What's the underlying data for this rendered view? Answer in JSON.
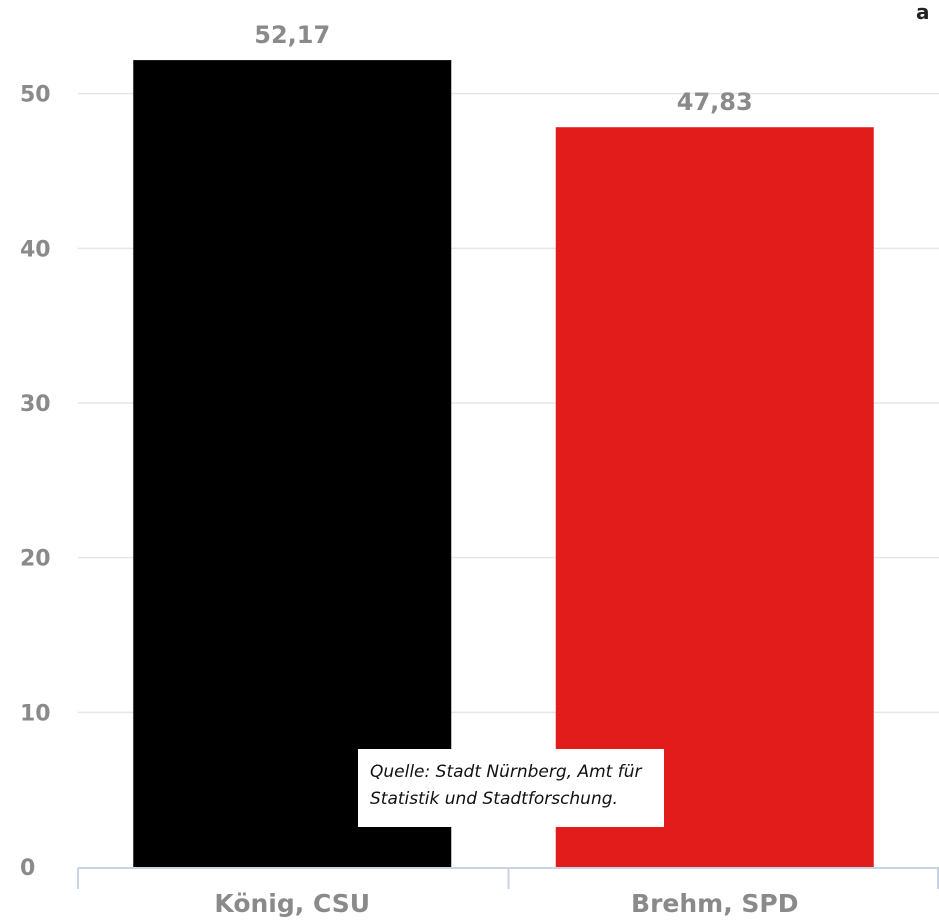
{
  "chart_data": {
    "type": "bar",
    "categories": [
      "König, CSU",
      "Brehm, SPD"
    ],
    "values": [
      52.17,
      47.83
    ],
    "value_labels": [
      "52,17",
      "47,83"
    ],
    "colors": [
      "#000000",
      "#e21b1b"
    ],
    "ylim": [
      0,
      52.5
    ],
    "yticks": [
      0,
      10,
      20,
      30,
      40,
      50
    ],
    "grid": true,
    "title": "",
    "xlabel": "",
    "ylabel": ""
  },
  "source_note": {
    "line1": "Quelle: Stadt Nürnberg, Amt für",
    "line2": "Statistik und Stadtforschung."
  },
  "corner_glyph": "a"
}
